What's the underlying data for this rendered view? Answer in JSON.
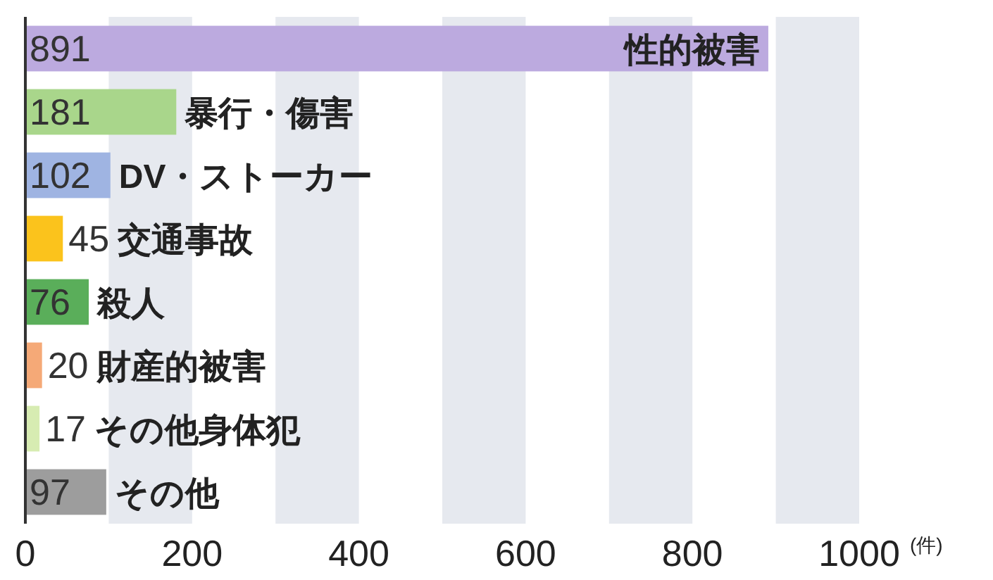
{
  "chart_data": {
    "type": "bar",
    "orientation": "horizontal",
    "xlabel": "(件)",
    "categories": [
      "性的被害",
      "暴行・傷害",
      "DV・ストーカー",
      "交通事故",
      "殺人",
      "財産的被害",
      "その他身体犯",
      "その他"
    ],
    "values": [
      891,
      181,
      102,
      45,
      76,
      20,
      17,
      97
    ],
    "colors": [
      "#bcaadf",
      "#a9d68b",
      "#9fb4e2",
      "#fbc31c",
      "#5aae5a",
      "#f5a977",
      "#d7ecb2",
      "#9d9d9d"
    ],
    "data_labels": true,
    "xlim": [
      0,
      1000
    ],
    "xticks": [
      0,
      200,
      400,
      600,
      800,
      1000
    ],
    "bands": [
      {
        "axis": "x",
        "from": 100,
        "to": 200,
        "color": "#e6e9ef"
      },
      {
        "axis": "x",
        "from": 300,
        "to": 400,
        "color": "#e6e9ef"
      },
      {
        "axis": "x",
        "from": 500,
        "to": 600,
        "color": "#e6e9ef"
      },
      {
        "axis": "x",
        "from": 700,
        "to": 800,
        "color": "#e6e9ef"
      },
      {
        "axis": "x",
        "from": 900,
        "to": 1000,
        "color": "#e6e9ef"
      }
    ]
  }
}
